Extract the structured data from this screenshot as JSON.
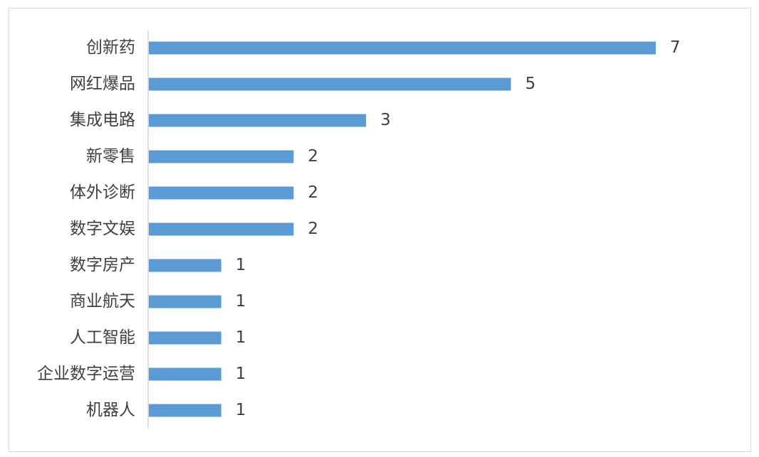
{
  "chart_data": {
    "type": "bar",
    "orientation": "horizontal",
    "categories": [
      "创新药",
      "网红爆品",
      "集成电路",
      "新零售",
      "体外诊断",
      "数字文娱",
      "数字房产",
      "商业航天",
      "人工智能",
      "企业数字运营",
      "机器人"
    ],
    "values": [
      7,
      5,
      3,
      2,
      2,
      2,
      1,
      1,
      1,
      1,
      1
    ],
    "color": "#5b9bd5"
  }
}
